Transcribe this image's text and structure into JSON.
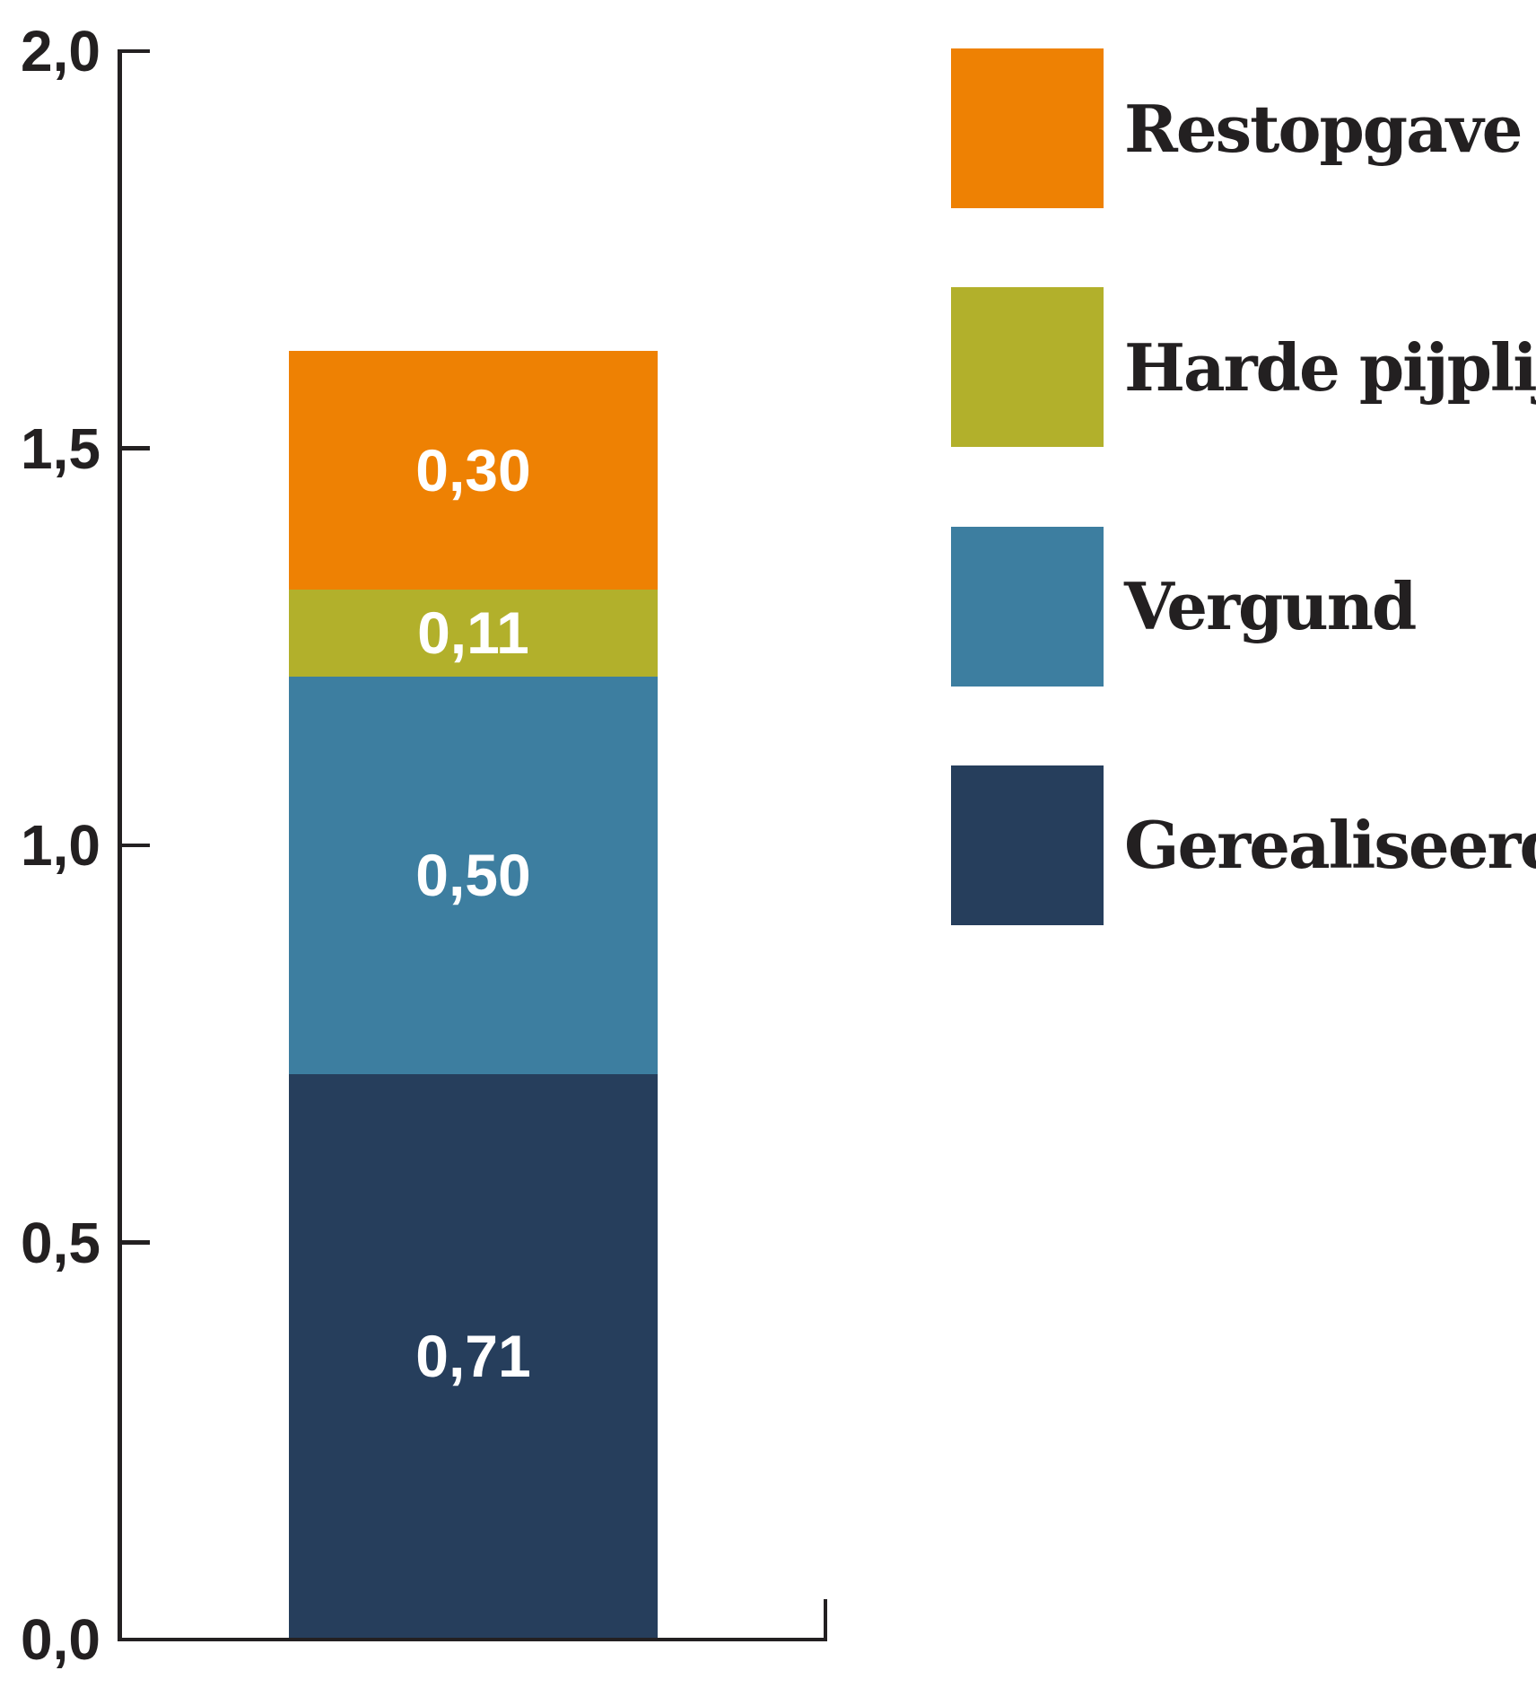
{
  "chart_data": {
    "type": "bar",
    "stacked": true,
    "title": "",
    "xlabel": "",
    "ylabel": "",
    "grid": false,
    "categories": [
      ""
    ],
    "ylim": [
      0.0,
      2.0
    ],
    "yticks": [
      {
        "value": 0.0,
        "label": "0,0"
      },
      {
        "value": 0.5,
        "label": "0,5"
      },
      {
        "value": 1.0,
        "label": "1,0"
      },
      {
        "value": 1.5,
        "label": "1,5"
      },
      {
        "value": 2.0,
        "label": "2,0"
      }
    ],
    "series": [
      {
        "name": "Gerealiseerd",
        "values": [
          0.71
        ],
        "display_label": "0,71",
        "color": "#263E5C"
      },
      {
        "name": "Vergund",
        "values": [
          0.5
        ],
        "display_label": "0,50",
        "color": "#3D7EA0"
      },
      {
        "name": "Harde pijplijn",
        "values": [
          0.11
        ],
        "display_label": "0,11",
        "color": "#B2B02B"
      },
      {
        "name": "Restopgave",
        "values": [
          0.3
        ],
        "display_label": "0,30",
        "color": "#EE8103"
      }
    ],
    "total": 1.62,
    "legend": {
      "position": "right",
      "entries": [
        {
          "label": "Restopgave",
          "color": "#EE8103"
        },
        {
          "label": "Harde pijplijn",
          "color": "#B2B02B"
        },
        {
          "label": "Vergund",
          "color": "#3D7EA0"
        },
        {
          "label": "Gerealiseerd",
          "color": "#263E5C"
        }
      ]
    }
  },
  "colors": {
    "axis": "#232021",
    "tick_text": "#232021",
    "value_text": "#ffffff",
    "background": "#ffffff"
  }
}
